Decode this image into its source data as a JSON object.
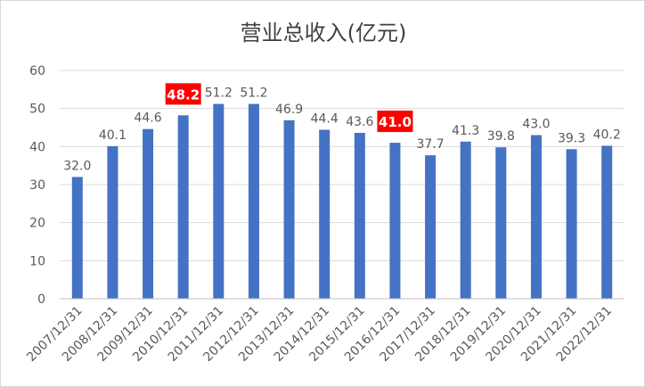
{
  "chart_data": {
    "type": "bar",
    "title": "营业总收入(亿元)",
    "xlabel": "",
    "ylabel": "",
    "ylim": [
      0,
      60
    ],
    "yticks": [
      0,
      10,
      20,
      30,
      40,
      50,
      60
    ],
    "grid": true,
    "legend": "none",
    "categories": [
      "2007/12/31",
      "2008/12/31",
      "2009/12/31",
      "2010/12/31",
      "2011/12/31",
      "2012/12/31",
      "2013/12/31",
      "2014/12/31",
      "2015/12/31",
      "2016/12/31",
      "2017/12/31",
      "2018/12/31",
      "2019/12/31",
      "2020/12/31",
      "2021/12/31",
      "2022/12/31"
    ],
    "series": [
      {
        "values": [
          32.0,
          40.1,
          44.6,
          48.2,
          51.2,
          51.2,
          46.9,
          44.4,
          43.6,
          41.0,
          37.7,
          41.3,
          39.8,
          43.0,
          39.3,
          40.2
        ],
        "labels": [
          "32.0",
          "40.1",
          "44.6",
          "48.2",
          "51.2",
          "51.2",
          "46.9",
          "44.4",
          "43.6",
          "41.0",
          "37.7",
          "41.3",
          "39.8",
          "43.0",
          "39.3",
          "40.2"
        ]
      }
    ],
    "highlighted_indices": [
      3,
      9
    ],
    "colors": {
      "bar": "#4472c4",
      "highlight": "#ff0000",
      "grid": "#d9d9d9",
      "text": "#595959"
    }
  }
}
